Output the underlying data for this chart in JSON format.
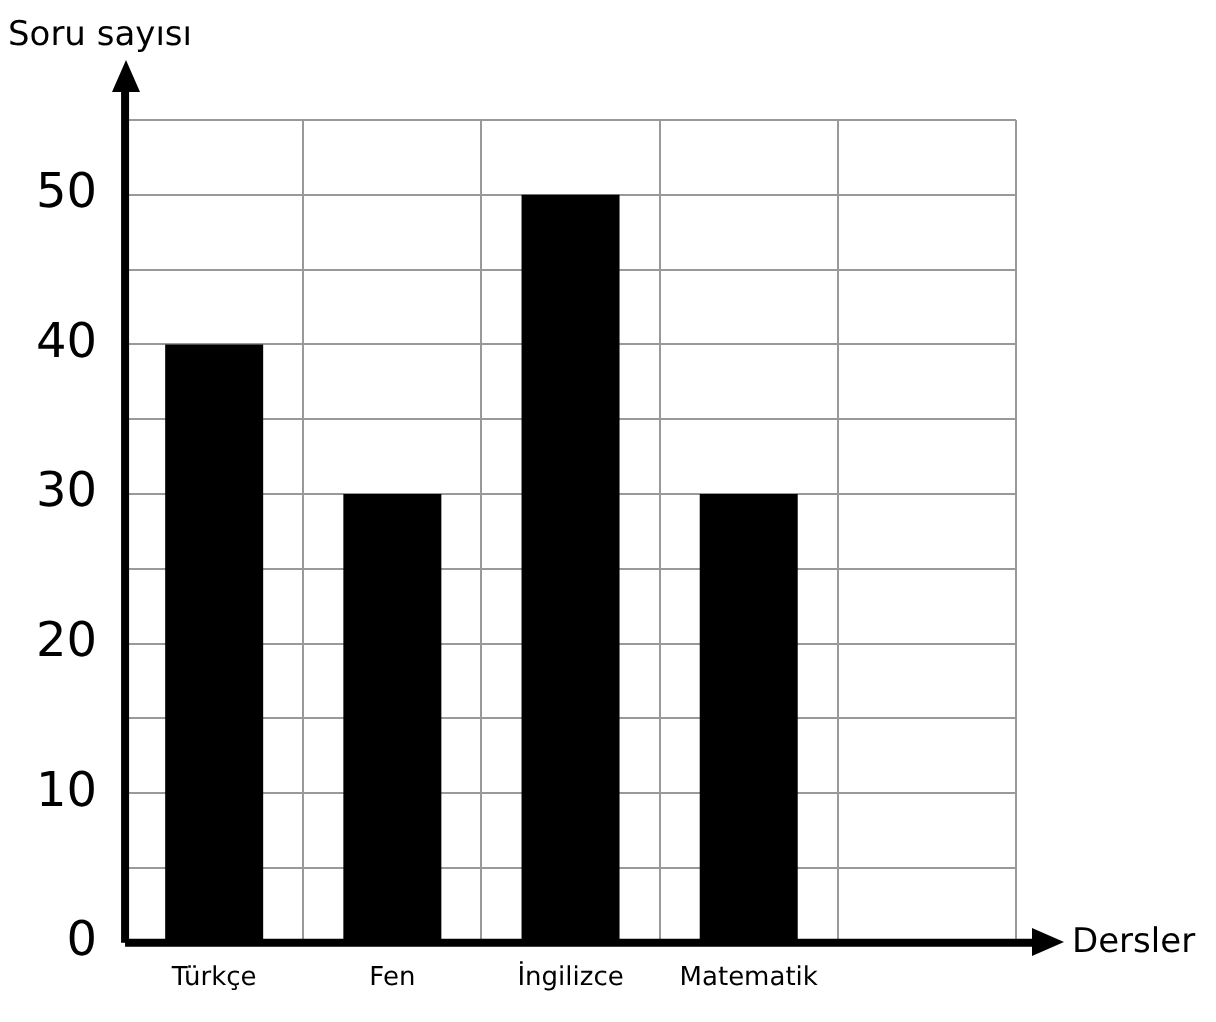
{
  "chart_data": {
    "type": "bar",
    "ylabel": "Soru sayısı",
    "xlabel": "Dersler",
    "categories": [
      "Türkçe",
      "Fen",
      "İngilizce",
      "Matematik",
      null
    ],
    "values": [
      40,
      30,
      50,
      30,
      null
    ],
    "color": "#000000",
    "ylim": [
      0,
      55
    ],
    "yticks": [
      0,
      {
        "value": 5,
        "label": null
      },
      10,
      {
        "value": 15,
        "label": null
      },
      20,
      {
        "value": 25,
        "label": null
      },
      30,
      {
        "value": 35,
        "label": null
      },
      40,
      {
        "value": 45,
        "label": null
      },
      50,
      {
        "value": 55,
        "label": null
      }
    ],
    "grid": true,
    "legend": false
  }
}
